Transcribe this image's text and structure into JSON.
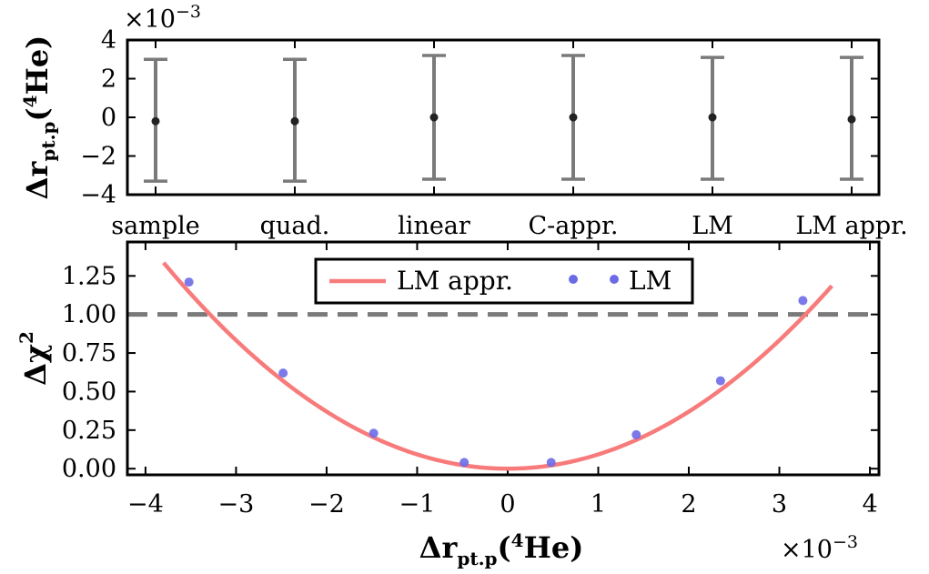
{
  "chart_data": [
    {
      "type": "scatter",
      "panel": "top",
      "categories": [
        "sample",
        "quad.",
        "linear",
        "C-appr.",
        "LM",
        "LM appr."
      ],
      "values": [
        -0.2,
        -0.2,
        0.0,
        0.0,
        0.0,
        -0.1
      ],
      "error_low": [
        -3.3,
        -3.3,
        -3.2,
        -3.2,
        -3.2,
        -3.2
      ],
      "error_high": [
        3.0,
        3.0,
        3.2,
        3.2,
        3.1,
        3.1
      ],
      "y_multiplier": "×10",
      "y_multiplier_exp": "−3",
      "ylabel_main": "Δr",
      "ylabel_sub": "pt.p",
      "ylabel_paren_open": "(",
      "ylabel_sup": "4",
      "ylabel_tail": "He)",
      "ylim": [
        -4,
        4
      ],
      "yticks": [
        4,
        2,
        0,
        -2,
        -4
      ],
      "ytick_labels": [
        "4",
        "2",
        "0",
        "−2",
        "−4"
      ],
      "marker_color": "#222222",
      "errorbar_color": "#7a7a7a"
    },
    {
      "type": "line",
      "panel": "bottom",
      "series": [
        {
          "name": "LM appr.",
          "kind": "line",
          "color": "#f87b7b",
          "curve_coeff": 0.0925,
          "x_range": [
            -3.8,
            3.58
          ]
        },
        {
          "name": "LM",
          "kind": "scatter",
          "color": "#6b6be8",
          "x": [
            -3.52,
            -2.48,
            -1.48,
            -0.48,
            0.48,
            1.42,
            2.35,
            3.26
          ],
          "y": [
            1.21,
            0.62,
            0.23,
            0.04,
            0.04,
            0.22,
            0.57,
            1.09
          ]
        }
      ],
      "reference_line": {
        "y": 1.0,
        "color": "#7a7a7a",
        "style": "dashed"
      },
      "xlabel_main": "Δr",
      "xlabel_sub": "pt.p",
      "xlabel_paren_open": "(",
      "xlabel_sup": "4",
      "xlabel_tail": "He)",
      "x_multiplier": "×10",
      "x_multiplier_exp": "−3",
      "ylabel_main": "Δχ",
      "ylabel_sup": "2",
      "xlim": [
        -4.2,
        4.1
      ],
      "ylim": [
        -0.04,
        1.47
      ],
      "xticks": [
        -4,
        -3,
        -2,
        -1,
        0,
        1,
        2,
        3,
        4
      ],
      "xtick_labels": [
        "−4",
        "−3",
        "−2",
        "−1",
        "0",
        "1",
        "2",
        "3",
        "4"
      ],
      "yticks": [
        0.0,
        0.25,
        0.5,
        0.75,
        1.0,
        1.25
      ],
      "ytick_labels": [
        "0.00",
        "0.25",
        "0.50",
        "0.75",
        "1.00",
        "1.25"
      ],
      "legend_placement": "top-center"
    }
  ]
}
